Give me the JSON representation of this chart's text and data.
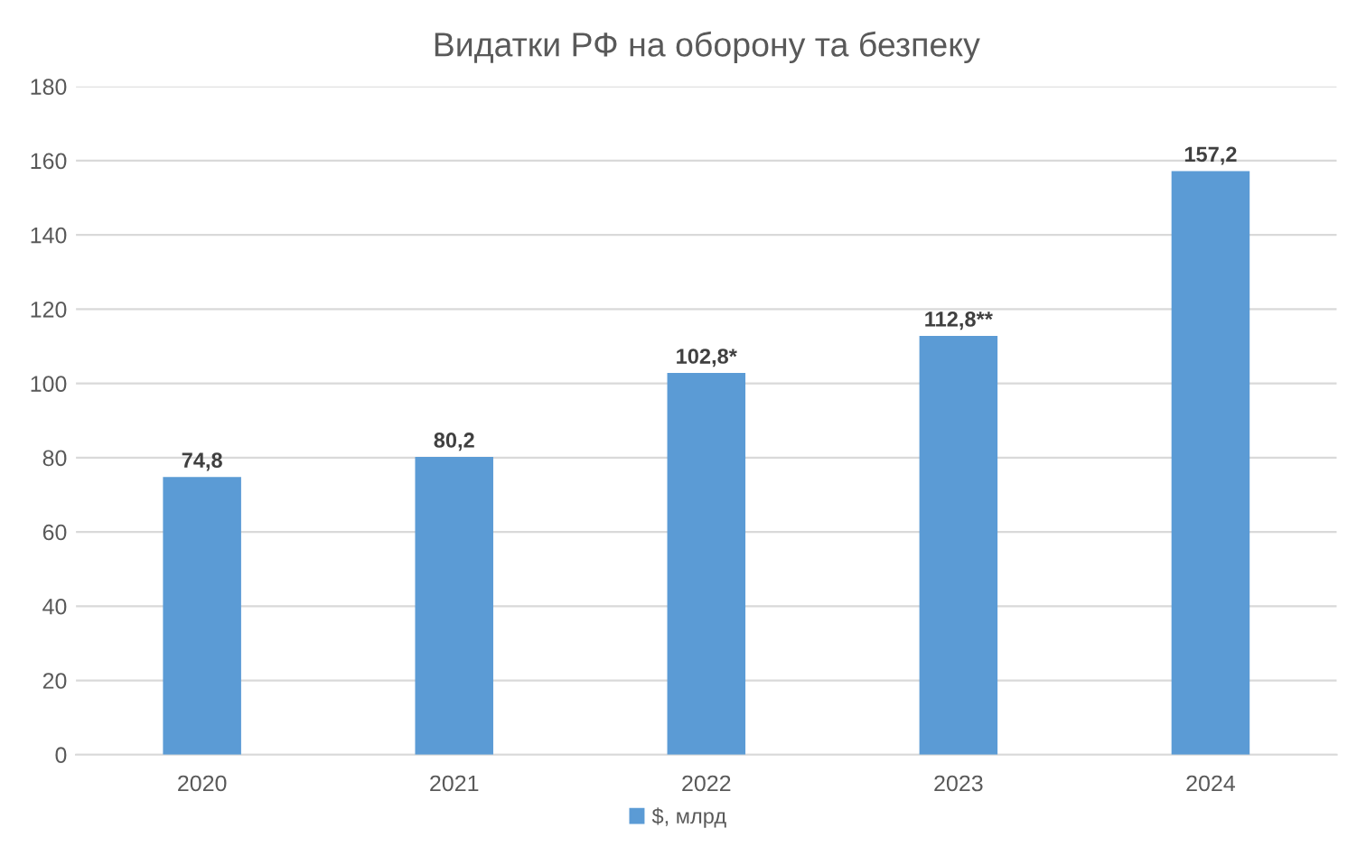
{
  "chart_data": {
    "type": "bar",
    "title": "Видатки РФ на оборону та безпеку",
    "categories": [
      "2020",
      "2021",
      "2022",
      "2023",
      "2024"
    ],
    "series": [
      {
        "name": "$, млрд",
        "color": "#5b9bd5",
        "values": [
          74.8,
          80.2,
          102.8,
          112.8,
          157.2
        ],
        "value_labels": [
          "74,8",
          "80,2",
          "102,8*",
          "112,8**",
          "157,2"
        ]
      }
    ],
    "ylim": [
      0,
      180
    ],
    "yticks": [
      0,
      20,
      40,
      60,
      80,
      100,
      120,
      140,
      160,
      180
    ],
    "grid": "y",
    "legend": "bottom"
  }
}
